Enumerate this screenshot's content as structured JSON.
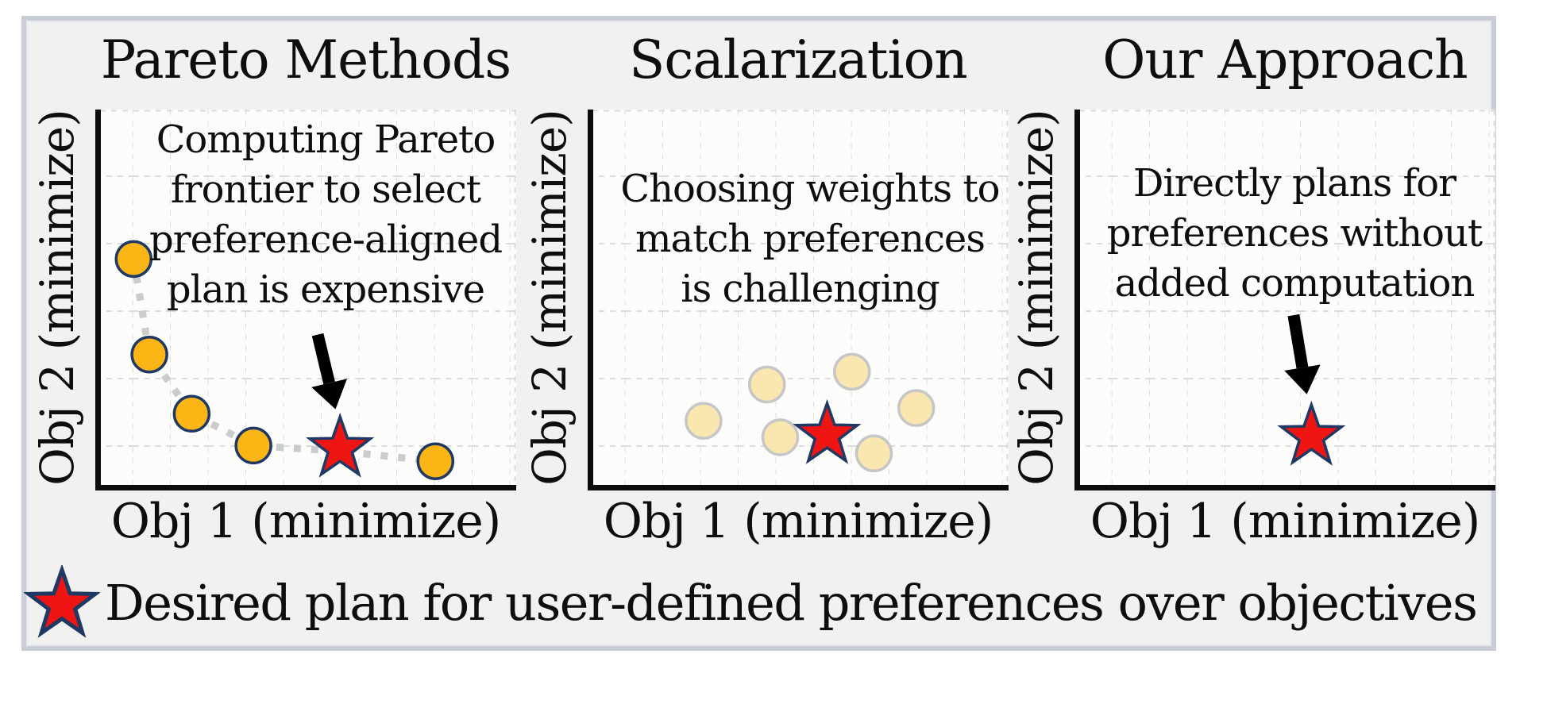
{
  "legend": {
    "label": "Desired plan for user-defined preferences over objectives",
    "marker": "star-icon"
  },
  "panels": [
    {
      "title": "Pareto Methods",
      "xlabel": "Obj 1 (minimize)",
      "ylabel": "Obj 2 (minimize)",
      "annotation_lines": [
        "Computing Pareto",
        "frontier to select",
        "preference-aligned",
        "plan is expensive"
      ]
    },
    {
      "title": "Scalarization",
      "xlabel": "Obj 1 (minimize)",
      "ylabel": "Obj 2 (minimize)",
      "annotation_lines": [
        "Choosing weights to",
        "match preferences",
        "is challenging"
      ]
    },
    {
      "title": "Our Approach",
      "xlabel": "Obj 1 (minimize)",
      "ylabel": "Obj 2 (minimize)",
      "annotation_lines": [
        "Directly plans for",
        "preferences without",
        "added computation"
      ]
    }
  ],
  "colors": {
    "figure_bg": "#f1f1f0",
    "figure_border": "#c9cdd8",
    "panel_bg": "#fcfcfb",
    "grid": "#d8d8d8",
    "axis": "#0d0d0d",
    "pareto_fill": "#FBB616",
    "pareto_stroke": "#1F3864",
    "faded_fill": "#FAE7B0",
    "faded_stroke": "#C6C6C6",
    "star_fill": "#EE1512",
    "star_stroke": "#1F3864",
    "connector": "#CBCBCB",
    "arrow": "#000000"
  },
  "chart_data": [
    {
      "type": "scatter",
      "title": "Pareto Methods",
      "xlabel": "Obj 1 (minimize)",
      "ylabel": "Obj 2 (minimize)",
      "axes_note": "conceptual axes, no ticks; coordinates are fractions of plot area from top-left",
      "grid": true,
      "points": [
        {
          "x": 0.081,
          "y": 0.399,
          "style": "pareto"
        },
        {
          "x": 0.119,
          "y": 0.654,
          "style": "pareto"
        },
        {
          "x": 0.221,
          "y": 0.812,
          "style": "pareto"
        },
        {
          "x": 0.37,
          "y": 0.897,
          "style": "pareto"
        },
        {
          "x": 0.809,
          "y": 0.939,
          "style": "pareto"
        }
      ],
      "connector": [
        [
          0.081,
          0.399
        ],
        [
          0.119,
          0.654
        ],
        [
          0.221,
          0.812
        ],
        [
          0.37,
          0.897
        ],
        [
          0.579,
          0.912
        ],
        [
          0.809,
          0.939
        ]
      ],
      "star": {
        "x": 0.579,
        "y": 0.905
      },
      "arrow": {
        "from": [
          0.525,
          0.601
        ],
        "to": [
          0.568,
          0.8
        ]
      }
    },
    {
      "type": "scatter",
      "title": "Scalarization",
      "xlabel": "Obj 1 (minimize)",
      "ylabel": "Obj 2 (minimize)",
      "axes_note": "conceptual axes, no ticks; coordinates are fractions of plot area from top-left",
      "grid": true,
      "points": [
        {
          "x": 0.268,
          "y": 0.831,
          "style": "faded"
        },
        {
          "x": 0.421,
          "y": 0.734,
          "style": "faded"
        },
        {
          "x": 0.626,
          "y": 0.7,
          "style": "faded"
        },
        {
          "x": 0.781,
          "y": 0.797,
          "style": "faded"
        },
        {
          "x": 0.453,
          "y": 0.875,
          "style": "faded"
        },
        {
          "x": 0.679,
          "y": 0.918,
          "style": "faded"
        }
      ],
      "connector": null,
      "star": {
        "x": 0.566,
        "y": 0.869
      },
      "arrow": null
    },
    {
      "type": "scatter",
      "title": "Our Approach",
      "xlabel": "Obj 1 (minimize)",
      "ylabel": "Obj 2 (minimize)",
      "axes_note": "conceptual axes, no ticks; coordinates are fractions of plot area from top-left",
      "grid": true,
      "points": [],
      "connector": null,
      "star": {
        "x": 0.56,
        "y": 0.873
      },
      "arrow": {
        "from": [
          0.517,
          0.549
        ],
        "to": [
          0.549,
          0.76
        ]
      }
    }
  ]
}
